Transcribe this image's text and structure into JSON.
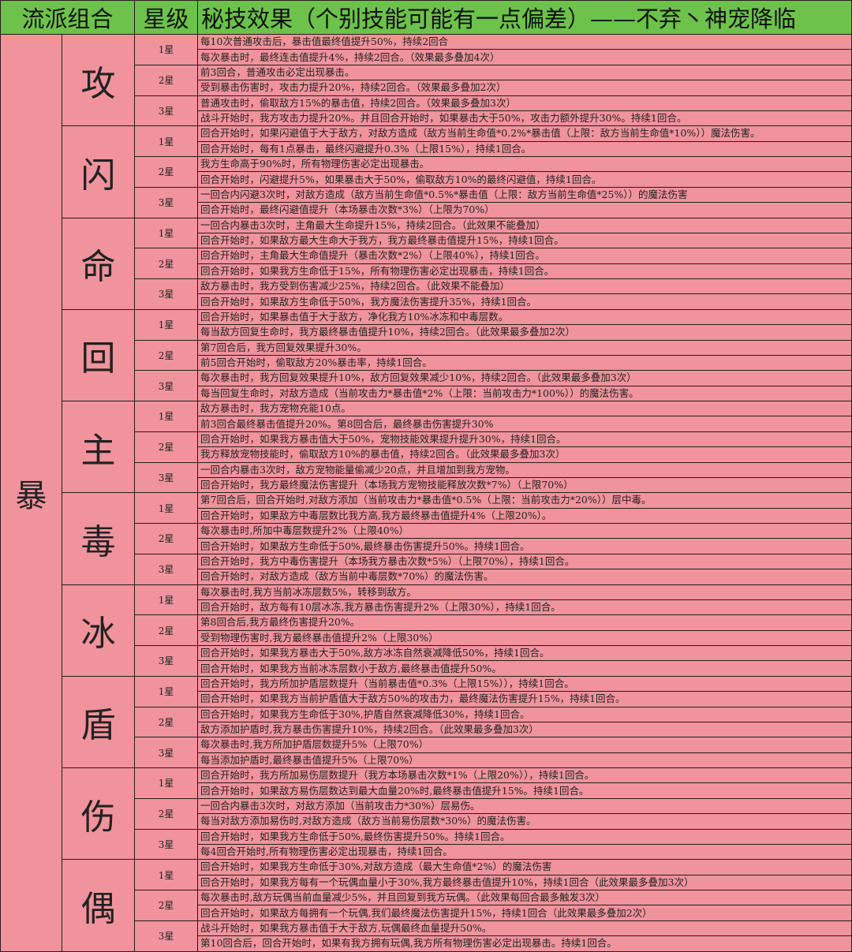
{
  "header": {
    "group": "流派组合",
    "star": "星级",
    "effect": "秘技效果（个别技能可能有一点偏差）——不弃丶神宠降临"
  },
  "colors": {
    "header_bg": "#6cc24a",
    "cell_bg": "#f0939c",
    "border": "#2a1a1a"
  },
  "category": "暴",
  "schools": [
    {
      "name": "攻",
      "tiers": [
        {
          "star": "1星",
          "effects": [
            "每10次普通攻击后，暴击值最终值提升50%，持续2回合",
            "每次暴击时，最终连击值提升4%，持续2回合。（效果最多叠加4次）"
          ]
        },
        {
          "star": "2星",
          "effects": [
            "前3回合，普通攻击必定出现暴击。",
            "受到暴击伤害时，攻击力提升20%，持续2回合。（效果最多叠加2次）"
          ]
        },
        {
          "star": "3星",
          "effects": [
            "普通攻击时，偷取敌方15%的暴击值，持续2回合。（效果最多叠加3次）",
            "战斗开始时，我方攻击力提升20%。并且回合开始时，如果暴击大于50%，攻击力额外提升30%。持续1回合。"
          ]
        }
      ]
    },
    {
      "name": "闪",
      "tiers": [
        {
          "star": "1星",
          "effects": [
            "回合开始时，如果闪避值于大于敌方，对敌方造成（敌方当前生命值*0.2%*暴击值（上限：敌方当前生命值*10%））魔法伤害。",
            "回合开始时，每有1点暴击，最终闪避提升0.3%（上限15%），持续1回合。"
          ]
        },
        {
          "star": "2星",
          "effects": [
            "我方生命高于90%时，所有物理伤害必定出现暴击。",
            "回合开始时，闪避提升5%，如果暴击大于50%，偷取敌方10%的最终闪避值，持续1回合。"
          ]
        },
        {
          "star": "3星",
          "effects": [
            "一回合内闪避3次时，对敌方造成（敌方当前生命值*0.5%*暴击值（上限：敌方当前生命值*25%））的魔法伤害",
            "回合开始时，最终闪避值提升（本场暴击次数*3%）（上限为70%）"
          ]
        }
      ]
    },
    {
      "name": "命",
      "tiers": [
        {
          "star": "1星",
          "effects": [
            "一回合内暴击3次时，主角最大生命提升15%，持续2回合。（此效果不能叠加）",
            "回合开始时，如果敌方最大生命大于我方，我方最终暴击值提升15%，持续1回合。"
          ]
        },
        {
          "star": "2星",
          "effects": [
            "回合开始时，主角最大生命值提升（暴击次数*2%）（上限40%），持续1回合。",
            "回合开始时，如果我方生命低于15%，所有物理伤害必定出现暴击，持续1回合。"
          ]
        },
        {
          "star": "3星",
          "effects": [
            "敌方暴击时，我方受到伤害减少25%，持续2回合。（此效果不能叠加）",
            "回合开始时，如果敌方生命低于50%，我方魔法伤害提升35%，持续1回合。"
          ]
        }
      ]
    },
    {
      "name": "回",
      "tiers": [
        {
          "star": "1星",
          "effects": [
            "回合开始时，如果暴击值于大于敌方，净化我方10%冰冻和中毒层数。",
            "每当敌方回复生命时，我方最终暴击值提升10%，持续2回合。（此效果最多叠加2次）"
          ]
        },
        {
          "star": "2星",
          "effects": [
            "第7回合后，我方回复效果提升30%。",
            "前5回合开始时，偷取敌方20%暴击率，持续1回合。"
          ]
        },
        {
          "star": "3星",
          "effects": [
            "每次暴击时，我方回复效果提升10%，敌方回复效果减少10%，持续2回合。（此效果最多叠加3次）",
            "每当回复生命时，对敌方造成（当前攻击力*暴击值*2%（上限：当前攻击力*100%））的魔法伤害。"
          ]
        }
      ]
    },
    {
      "name": "主",
      "tiers": [
        {
          "star": "1星",
          "effects": [
            "敌方暴击时，我方宠物充能10点。",
            "前3回合最终暴击值提升20%。第8回合后，最终暴击伤害提升30%"
          ]
        },
        {
          "star": "2星",
          "effects": [
            "回合开始时，如果我方暴击值大于50%，宠物技能效果提升提升30%，持续1回合。",
            "我方释放宠物技能时，偷取敌方10%的暴击值，持续2回合。（此效果最多叠加3次）"
          ]
        },
        {
          "star": "3星",
          "effects": [
            "一回合内暴击3次时，敌方宠物能量偷减少20点，并且增加到我方宠物。",
            "回合开始时，我方最终魔法伤害提升（本场我方宠物技能释放次数*7%）（上限70%）"
          ]
        }
      ]
    },
    {
      "name": "毒",
      "tiers": [
        {
          "star": "1星",
          "effects": [
            "第7回合后，回合开始时,对敌方添加（当前攻击力*暴击值*0.5%（上限：当前攻击力*20%））层中毒。",
            "回合开始时，如果敌方中毒层数比我方高,我方最终暴击值提升4%（上限20%）。"
          ]
        },
        {
          "star": "2星",
          "effects": [
            "每次暴击时,所加中毒层数提升2%（上限40%）",
            "回合开始时，如果敌方生命低于50%,最终暴击伤害提升50%。持续1回合。"
          ]
        },
        {
          "star": "3星",
          "effects": [
            "回合开始时，我方中毒伤害提升（本场我方暴击次数*5%）（上限70%），持续1回合。",
            "回合开始时，对敌方造成（敌方当前中毒层数*70%）的魔法伤害。"
          ]
        }
      ]
    },
    {
      "name": "冰",
      "tiers": [
        {
          "star": "1星",
          "effects": [
            "每次暴击时,我方当前冰冻层数5%，转移到敌方。",
            "回合开始时，敌方每有10层冰冻,我方暴击伤害提升2%（上限30%），持续1回合。"
          ]
        },
        {
          "star": "2星",
          "effects": [
            "第8回合后,我方最终伤害提升20%。",
            "受到物理伤害时,我方最终暴击值提升2%（上限30%）"
          ]
        },
        {
          "star": "3星",
          "effects": [
            "回合开始时，如果我方暴击大于50%,敌方冰冻自然衰减降低50%，持续1回合。",
            "回合开始时，如果我方当前冰冻层数小于敌方,最终暴击值提升50%。"
          ]
        }
      ]
    },
    {
      "name": "盾",
      "tiers": [
        {
          "star": "1星",
          "effects": [
            "回合开始时，我方所加护盾层数提升（当前暴击值*0.3%（上限15%）），持续1回合。",
            "回合开始时，如果我方当前护盾值大于敌方50%的攻击力，最终魔法伤害提升15%，持续1回合。"
          ]
        },
        {
          "star": "2星",
          "effects": [
            "回合开始时，如果我方生命低于30%,护盾自然衰减降低30%，持续1回合。",
            "敌方添加护盾时,我方暴击伤害提升10%，持续2回合。（此效果最多叠加3次）"
          ]
        },
        {
          "star": "3星",
          "effects": [
            "每次暴击时,我方所加护盾层数提升5%（上限70%）",
            "每当添加护盾时,最终暴击值提升5%（上限70%）"
          ]
        }
      ]
    },
    {
      "name": "伤",
      "tiers": [
        {
          "star": "1星",
          "effects": [
            "回合开始时，我方所加易伤层数提升（我方本场暴击次数*1%（上限20%）），持续1回合。",
            "回合开始时，如果敌方易伤层数达到最大血量20%时,最终暴击值提升15%。持续1回合。"
          ]
        },
        {
          "star": "2星",
          "effects": [
            "一回合内暴击3次时，对敌方添加（当前攻击力*30%）层易伤。",
            "每当对敌方添加易伤时,对敌方造成（敌方当前易伤层数*30%）的魔法伤害。"
          ]
        },
        {
          "star": "3星",
          "effects": [
            "回合开始时，如果我方生命低于50%,最终伤害提升50%。持续1回合。",
            "每4回合开始时,所有物理伤害必定出现暴击，持续1回合。"
          ]
        }
      ]
    },
    {
      "name": "偶",
      "tiers": [
        {
          "star": "1星",
          "effects": [
            "回合开始时，如果我方生命低于30%,对敌方造成（最大生命值*2%）的魔法伤害",
            "回合开始时，如果我方每有一个玩偶血量小于30%,我方最终暴击值提升10%，持续1回合（此效果最多叠加3次）"
          ]
        },
        {
          "star": "2星",
          "effects": [
            "每次暴击时,敌方玩偶当前血量减少5%，并且回复到我方玩偶。（此效果每回合最多触发3次）",
            "回合开始时，如果敌方每拥有一个玩偶,我们最终魔法伤害提升15%，持续1回合（此效果最多叠加2次）"
          ]
        },
        {
          "star": "3星",
          "effects": [
            "战斗开始时，如果我方暴击值于大于敌方,玩偶最终血量提升50%。",
            "第10回合后，回合开始时，如果有我方拥有玩偶,我方所有物理伤害必定出现暴击。持续1回合。"
          ]
        }
      ]
    }
  ]
}
